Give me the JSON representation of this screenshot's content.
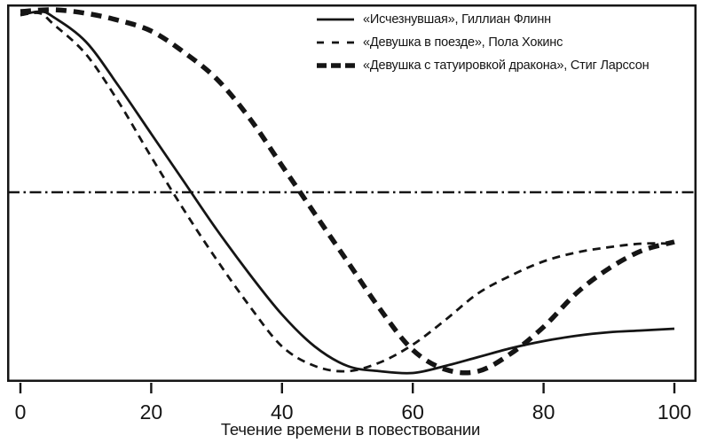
{
  "figure": {
    "background": "#ffffff",
    "ink": "#151515"
  },
  "chart_data": {
    "type": "line",
    "title": "",
    "xlabel": "Течение времени в повествовании",
    "ylabel": "",
    "x_range": [
      0,
      100
    ],
    "y_range": [
      -1.1,
      1.1
    ],
    "x_ticks": [
      0,
      20,
      40,
      60,
      80,
      100
    ],
    "grid": false,
    "legend_position": "top-right",
    "baseline": {
      "y": 0,
      "style": "dash-dot",
      "description": "neutral horizontal reference line"
    },
    "series": [
      {
        "key": "gone-girl",
        "name": "«Исчезнувшая», Гиллиан Флинн",
        "style": "solid",
        "x": [
          0,
          3,
          5,
          10,
          15,
          20,
          25,
          30,
          35,
          40,
          45,
          50,
          55,
          60,
          65,
          70,
          75,
          80,
          85,
          90,
          95,
          100
        ],
        "y": [
          1.0,
          1.02,
          0.99,
          0.85,
          0.6,
          0.33,
          0.06,
          -0.21,
          -0.46,
          -0.69,
          -0.87,
          -0.98,
          -1.01,
          -1.02,
          -0.98,
          -0.93,
          -0.88,
          -0.84,
          -0.81,
          -0.79,
          -0.78,
          -0.77
        ]
      },
      {
        "key": "girl-on-the-train",
        "name": "«Девушка в поезде», Пола Хокинс",
        "style": "dashed",
        "x": [
          0,
          3,
          5,
          10,
          15,
          20,
          25,
          30,
          35,
          40,
          45,
          50,
          55,
          60,
          65,
          70,
          75,
          80,
          85,
          90,
          95,
          100
        ],
        "y": [
          1.0,
          1.01,
          0.95,
          0.78,
          0.51,
          0.2,
          -0.1,
          -0.38,
          -0.64,
          -0.87,
          -0.98,
          -1.01,
          -0.96,
          -0.86,
          -0.72,
          -0.57,
          -0.47,
          -0.39,
          -0.34,
          -0.31,
          -0.29,
          -0.29
        ]
      },
      {
        "key": "dragon-tattoo",
        "name": "«Девушка с татуировкой дракона», Стиг Ларссон",
        "style": "thick-dashed",
        "x": [
          0,
          5,
          10,
          15,
          20,
          25,
          30,
          35,
          40,
          45,
          50,
          55,
          60,
          65,
          70,
          75,
          80,
          85,
          90,
          95,
          100
        ],
        "y": [
          1.02,
          1.03,
          1.01,
          0.97,
          0.91,
          0.79,
          0.64,
          0.42,
          0.15,
          -0.12,
          -0.39,
          -0.66,
          -0.89,
          -1.0,
          -1.01,
          -0.91,
          -0.76,
          -0.57,
          -0.43,
          -0.33,
          -0.28
        ]
      }
    ]
  }
}
